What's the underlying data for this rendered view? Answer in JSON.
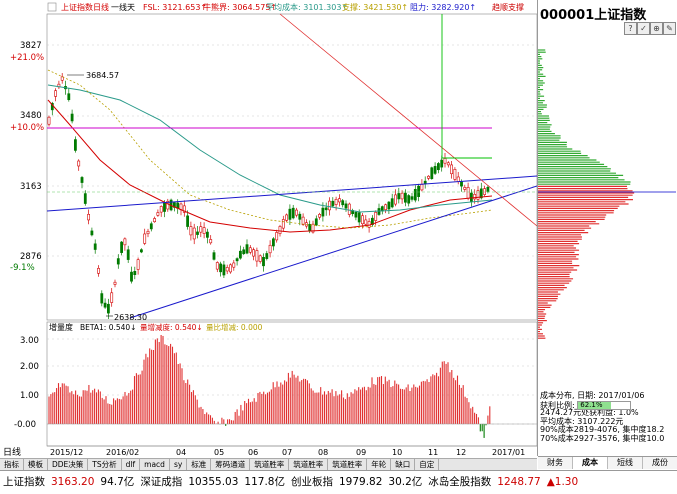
{
  "top_legend": {
    "name": "上证指数日线",
    "period": "一线天",
    "fsl": "FSL: 3121.653↑",
    "bull_line": "牛熊界: 3064.575↑",
    "avg_cost": "平均成本: 3101.303↑",
    "support": "支撑: 3421.530↑",
    "resistance": "阻力: 3282.920↑",
    "break_support": "趋顺支撑"
  },
  "price_axis": {
    "labels": [
      "3827",
      "+21.0%",
      "3480",
      "+10.0%",
      "3163",
      "2876",
      "-9.1%"
    ]
  },
  "annotations": {
    "high": "3684.57",
    "low": "2638.30"
  },
  "volume_legend": {
    "name": "增量度",
    "beta": "BETA1: 0.540↓",
    "reduce": "量增减度: 0.540↓",
    "ratio": "量比增减: 0.000"
  },
  "volume_axis": {
    "labels": [
      "3.00",
      "2.00",
      "1.00",
      "-0.00"
    ]
  },
  "date_axis": {
    "prefix": "日线",
    "labels": [
      "2015/12",
      "2016/02",
      "04",
      "05",
      "06",
      "07",
      "08",
      "09",
      "10",
      "11",
      "12",
      "2017/01"
    ]
  },
  "bottom_tabs": [
    "指标",
    "模板",
    "DDE决策",
    "TS分析",
    "dlf",
    "macd",
    "sy",
    "标准",
    "筹码通道",
    "筑道胜率",
    "筑道胜率",
    "筑道胜率",
    "年轮",
    "缺口",
    "自定"
  ],
  "side": {
    "title": "000001上证指数",
    "icons": [
      "?",
      "✓",
      "⊕",
      "✎"
    ],
    "cost": {
      "date": "成本分布, 日期: 2017/01/06",
      "ratio_label": "获利比例:",
      "ratio_value": "62.1%",
      "ratio_fraction": 0.621,
      "rows": [
        "2474.27元处获利盘: 1.0%",
        "平均成本: 3107.222元",
        "90%成本2819-4076, 集中度18.2",
        "70%成本2927-3576, 集中度10.0"
      ]
    },
    "tabs": [
      "财务",
      "成本",
      "短线",
      "成份"
    ]
  },
  "ticker": {
    "items": [
      {
        "label": "上证指数",
        "value": "3163.20",
        "cls": "up"
      },
      {
        "label": "",
        "value": "94.7亿",
        "cls": "blk"
      },
      {
        "label": "深证成指",
        "value": "10355.03",
        "cls": "blk"
      },
      {
        "label": "",
        "value": "117.8亿",
        "cls": "blk"
      },
      {
        "label": "创业板指",
        "value": "1979.82",
        "cls": "blk"
      },
      {
        "label": "",
        "value": "30.2亿",
        "cls": "blk"
      },
      {
        "label": "冰岛全股指数",
        "value": "1248.77",
        "cls": "up"
      },
      {
        "label": "",
        "value": "▲1.30",
        "cls": "up"
      }
    ]
  },
  "colors": {
    "up_candle": "#d40000",
    "down_candle": "#007a00",
    "ma_red": "#d40000",
    "ma_teal": "#2a9a8a",
    "ma_yellow": "#b8a000",
    "trend_blue": "#1a1acc",
    "diag_red": "#e03030",
    "magenta_line": "#cc00cc",
    "green_line": "#00c000",
    "volume": "#e03030"
  }
}
